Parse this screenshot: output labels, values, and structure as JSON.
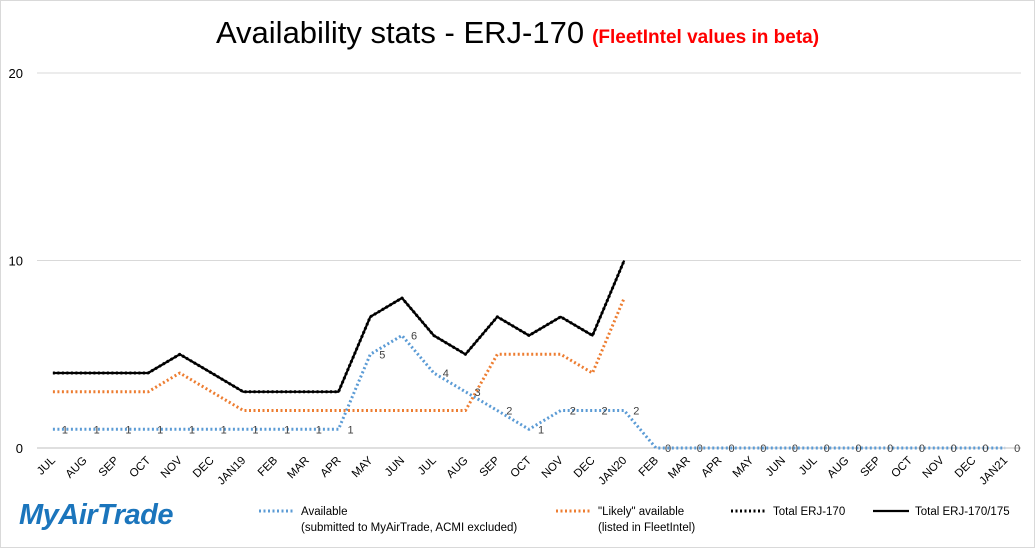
{
  "title": {
    "main": "Availability  stats - ERJ-170",
    "subtitle": "(FleetIntel values in beta)"
  },
  "logo_text": "MyAirTrade",
  "legend": [
    {
      "line1": "Available",
      "line2": "(submitted to MyAirTrade, ACMI excluded)"
    },
    {
      "line1": "\"Likely\" available",
      "line2": "(listed in FleetIntel)"
    },
    {
      "line1": "Total ERJ-170",
      "line2": ""
    },
    {
      "line1": "Total ERJ-170/175",
      "line2": ""
    }
  ],
  "colors": {
    "available": "#5b9bd5",
    "likely": "#ed7d31",
    "total_170": "#000000",
    "total_170_175": "#000000",
    "subtitle": "#ff0000",
    "logo": "#1b75bc",
    "gridline": "#d9d9d9"
  },
  "chart_data": {
    "type": "line",
    "categories": [
      "JUL",
      "AUG",
      "SEP",
      "OCT",
      "NOV",
      "DEC",
      "JAN19",
      "FEB",
      "MAR",
      "APR",
      "MAY",
      "JUN",
      "JUL",
      "AUG",
      "SEP",
      "OCT",
      "NOV",
      "DEC",
      "JAN20",
      "FEB",
      "MAR",
      "APR",
      "MAY",
      "JUN",
      "JUL",
      "AUG",
      "SEP",
      "OCT",
      "NOV",
      "DEC",
      "JAN21"
    ],
    "ylim": [
      0,
      20
    ],
    "yticks": [
      0,
      10,
      20
    ],
    "grid": true,
    "legend_position": "bottom",
    "series": [
      {
        "name": "Available (submitted to MyAirTrade, ACMI excluded)",
        "style": "dotted",
        "values": [
          1,
          1,
          1,
          1,
          1,
          1,
          1,
          1,
          1,
          1,
          5,
          6,
          4,
          3,
          2,
          1,
          2,
          2,
          2,
          0,
          0,
          0,
          0,
          0,
          0,
          0,
          0,
          0,
          0,
          0,
          0
        ],
        "labels": [
          "1",
          "1",
          "1",
          "1",
          "1",
          "1",
          "1",
          "1",
          "1",
          "1",
          "5",
          "6",
          "4",
          "3",
          "2",
          "1",
          "2",
          "2",
          "2",
          "0",
          "0",
          "0",
          "0",
          "0",
          "0",
          "0",
          "0",
          "0",
          "0",
          "0",
          "0"
        ]
      },
      {
        "name": "\"Likely\" available (listed in FleetIntel)",
        "style": "dotted",
        "values": [
          3,
          3,
          3,
          3,
          4,
          3,
          2,
          2,
          2,
          2,
          2,
          2,
          2,
          2,
          5,
          5,
          5,
          4,
          8,
          null,
          null,
          null,
          null,
          null,
          null,
          null,
          null,
          null,
          null,
          null,
          null
        ]
      },
      {
        "name": "Total ERJ-170",
        "style": "dotted",
        "values": [
          4,
          4,
          4,
          4,
          5,
          4,
          3,
          3,
          3,
          3,
          7,
          8,
          6,
          5,
          7,
          6,
          7,
          6,
          10,
          null,
          null,
          null,
          null,
          null,
          null,
          null,
          null,
          null,
          null,
          null,
          null
        ]
      },
      {
        "name": "Total ERJ-170/175",
        "style": "solid",
        "values": [
          4,
          4,
          4,
          4,
          5,
          4,
          3,
          3,
          3,
          3,
          7,
          8,
          6,
          5,
          7,
          6,
          7,
          6,
          10,
          null,
          null,
          null,
          null,
          null,
          null,
          null,
          null,
          null,
          null,
          null,
          null
        ]
      }
    ]
  }
}
